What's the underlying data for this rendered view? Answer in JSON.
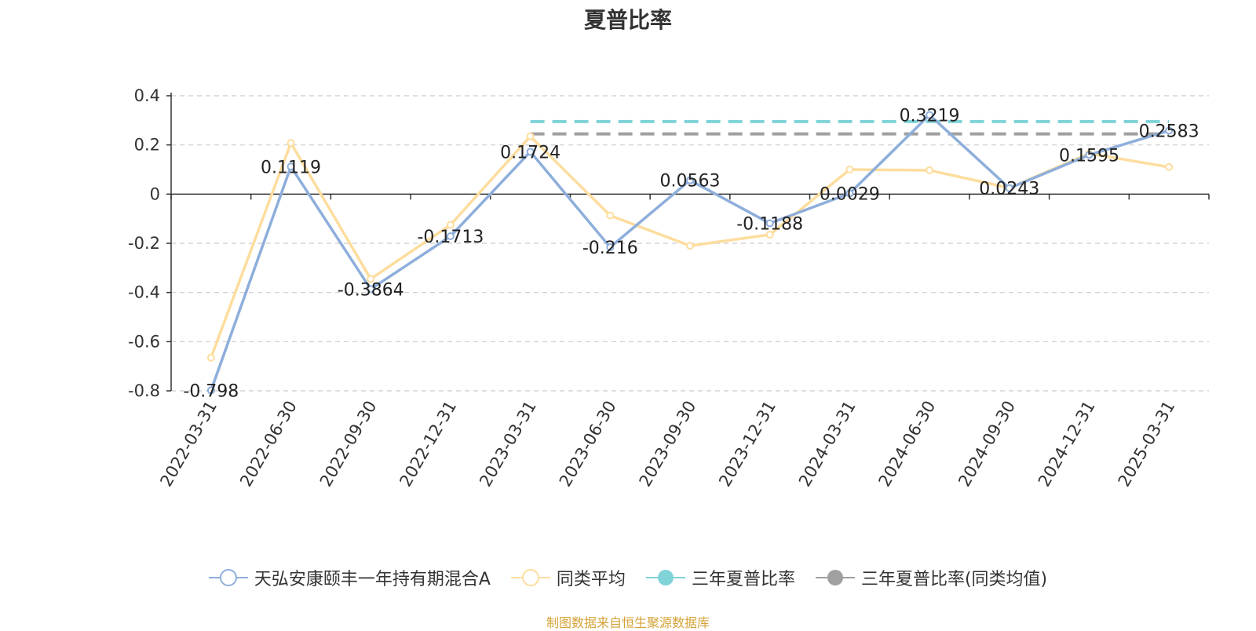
{
  "chart_data": {
    "type": "line",
    "title": "夏普比率",
    "categories": [
      "2022-03-31",
      "2022-06-30",
      "2022-09-30",
      "2022-12-31",
      "2023-03-31",
      "2023-06-30",
      "2023-09-30",
      "2023-12-31",
      "2024-03-31",
      "2024-06-30",
      "2024-09-30",
      "2024-12-31",
      "2025-03-31"
    ],
    "ylim": [
      -0.8,
      0.4
    ],
    "yticks": [
      0.4,
      0.2,
      0,
      -0.2,
      -0.4,
      -0.6,
      -0.8
    ],
    "grid": true,
    "legend_position": "bottom",
    "series": [
      {
        "name": "天弘安康颐丰一年持有期混合A",
        "color": "#8eaedb",
        "values": [
          -0.798,
          0.1119,
          -0.3864,
          -0.1713,
          0.1724,
          -0.216,
          0.0563,
          -0.1188,
          0.0029,
          0.3219,
          0.0243,
          0.1595,
          0.2583
        ],
        "labels": [
          "-0.798",
          "0.1119",
          "-0.3864",
          "-0.1713",
          "0.1724",
          "-0.216",
          "0.0563",
          "-0.1188",
          "0.0029",
          "0.3219",
          "0.0243",
          "0.1595",
          "0.2583"
        ]
      },
      {
        "name": "同类平均",
        "color": "#fddd9e",
        "values": [
          -0.665,
          0.208,
          -0.345,
          -0.125,
          0.235,
          -0.087,
          -0.21,
          -0.165,
          0.1,
          0.097,
          0.025,
          0.165,
          0.11
        ]
      },
      {
        "name": "三年夏普比率",
        "color": "#7fd3d9",
        "style": "dashed",
        "range": [
          "2023-03-31",
          "2025-03-31"
        ],
        "value": 0.295
      },
      {
        "name": "三年夏普比率(同类均值)",
        "color": "#a0a0a0",
        "style": "dashed",
        "range": [
          "2023-03-31",
          "2025-03-31"
        ],
        "value": 0.245
      }
    ]
  },
  "source_note": "制图数据来自恒生聚源数据库"
}
